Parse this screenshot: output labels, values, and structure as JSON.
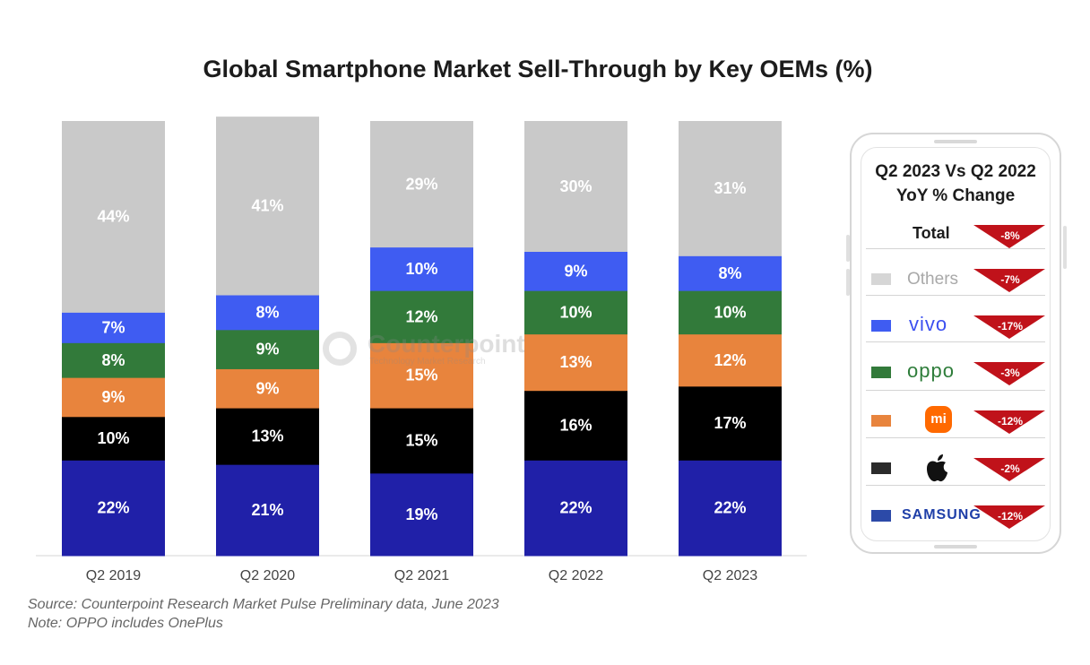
{
  "chart_data": {
    "type": "bar",
    "stacked": true,
    "title": "Global Smartphone Market Sell-Through by Key OEMs (%)",
    "xlabel": "",
    "ylabel": "",
    "ylim": [
      0,
      100
    ],
    "categories": [
      "Q2 2019",
      "Q2 2020",
      "Q2 2021",
      "Q2 2022",
      "Q2 2023"
    ],
    "series": [
      {
        "name": "Samsung",
        "color": "#2020a8",
        "values": [
          22,
          21,
          19,
          22,
          22
        ]
      },
      {
        "name": "Apple",
        "color": "#000000",
        "values": [
          10,
          13,
          15,
          16,
          17
        ]
      },
      {
        "name": "Xiaomi",
        "color": "#e8843d",
        "values": [
          9,
          9,
          15,
          13,
          12
        ]
      },
      {
        "name": "OPPO",
        "color": "#327a3a",
        "values": [
          8,
          9,
          12,
          10,
          10
        ]
      },
      {
        "name": "vivo",
        "color": "#3f5cf2",
        "values": [
          7,
          8,
          10,
          9,
          8
        ]
      },
      {
        "name": "Others",
        "color": "#c9c9c9",
        "values": [
          44,
          41,
          29,
          30,
          31
        ]
      }
    ]
  },
  "footnotes": {
    "source": "Source: Counterpoint Research Market Pulse Preliminary data, June 2023",
    "note": "Note: OPPO includes OnePlus"
  },
  "watermark": {
    "name": "Counterpoint",
    "tagline": "Technology Market Research"
  },
  "yoy_panel": {
    "title_line1": "Q2 2023 Vs Q2 2022",
    "title_line2": "YoY % Change",
    "arrow_color": "#c0121a",
    "rows": [
      {
        "key": "total",
        "label": "Total",
        "change": "-8%"
      },
      {
        "key": "others",
        "label": "Others",
        "change": "-7%",
        "swatch": "#d6d6d6"
      },
      {
        "key": "vivo",
        "label": "vivo",
        "change": "-17%",
        "swatch": "#3f5cf2"
      },
      {
        "key": "oppo",
        "label": "oppo",
        "change": "-3%",
        "swatch": "#327a3a"
      },
      {
        "key": "xiaomi",
        "label": "mi",
        "change": "-12%",
        "swatch": "#e8843d",
        "icon": "xiaomi-logo-icon"
      },
      {
        "key": "apple",
        "label": "",
        "change": "-2%",
        "swatch": "#2b2b2b",
        "icon": "apple-logo-icon"
      },
      {
        "key": "samsung",
        "label": "SAMSUNG",
        "change": "-12%",
        "swatch": "#2c4aa8"
      }
    ]
  }
}
